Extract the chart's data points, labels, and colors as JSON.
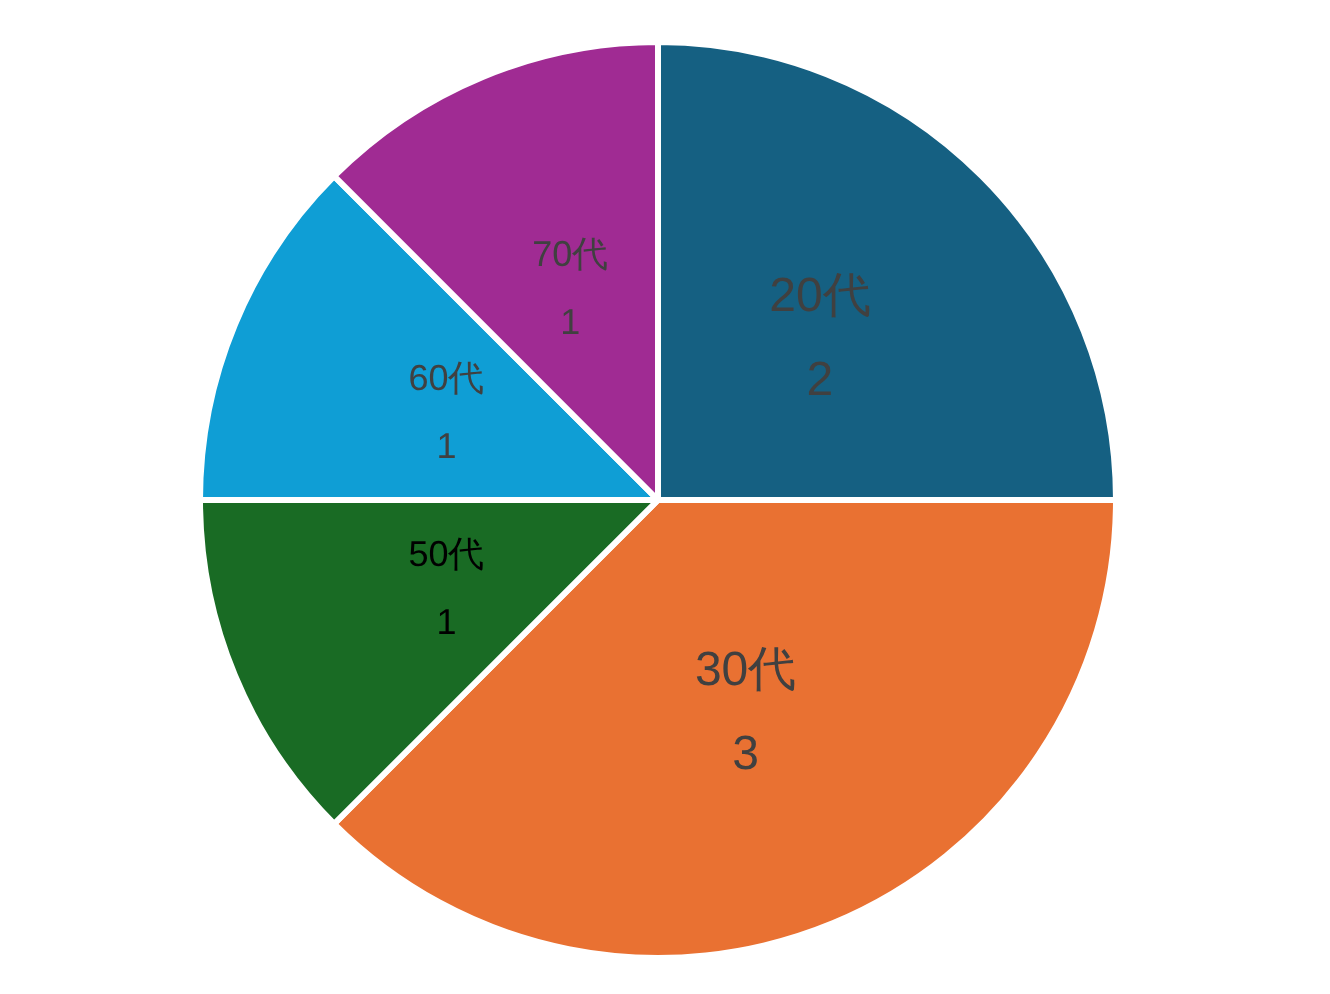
{
  "chart_data": {
    "type": "pie",
    "categories": [
      "20代",
      "30代",
      "50代",
      "60代",
      "70代"
    ],
    "values": [
      2,
      3,
      1,
      1,
      1
    ],
    "colors": [
      "#156082",
      "#e97132",
      "#196b24",
      "#0f9ed5",
      "#a02b93"
    ],
    "data_labels": true
  }
}
